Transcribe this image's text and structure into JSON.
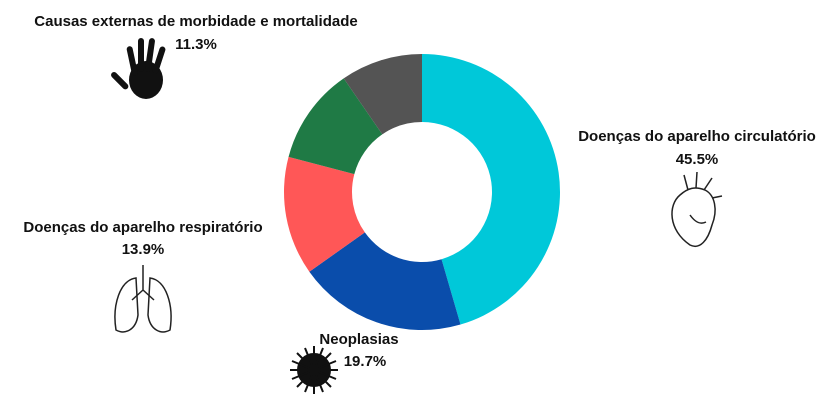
{
  "chart_data": {
    "type": "donut",
    "categories": [
      "Doenças do aparelho circulatório",
      "Neoplasias",
      "Doenças do aparelho respiratório",
      "Causas externas de morbidade e mortalidade",
      null
    ],
    "values": [
      45.5,
      19.7,
      13.9,
      11.3,
      9.6
    ],
    "value_labels": [
      "45.5%",
      "19.7%",
      "13.9%",
      "11.3%",
      null
    ],
    "colors": [
      "#00c8d9",
      "#0a4dab",
      "#ff5757",
      "#1f7a45",
      "#545454"
    ]
  }
}
